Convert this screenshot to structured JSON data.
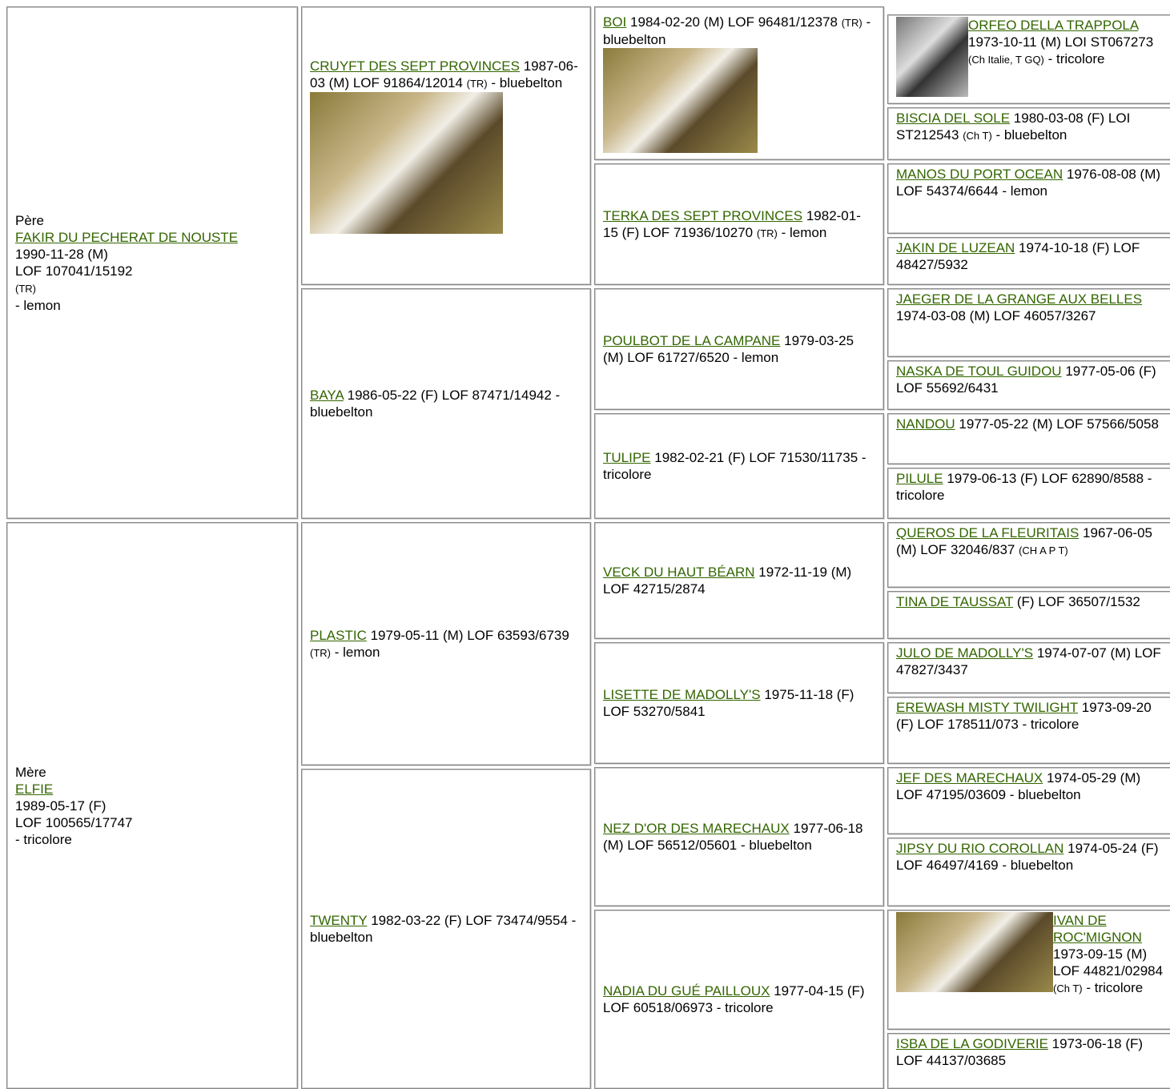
{
  "sire": {
    "role": "Père",
    "name": "FAKIR DU PECHERAT DE NOUSTE",
    "lines": [
      "1990-11-28 (M)",
      "LOF 107041/15192"
    ],
    "note": "(TR)",
    "color": "- lemon"
  },
  "dam": {
    "role": "Mère",
    "name": "ELFIE",
    "lines": [
      "1989-05-17 (F)",
      "LOF 100565/17747"
    ],
    "color": "- tricolore"
  },
  "grandparents": [
    {
      "name": "CRUYFT DES SEPT PROVINCES",
      "info": "1987-06-03 (M) LOF 91864/12014",
      "note": "(TR)",
      "color": "- bluebelton"
    },
    {
      "name": "BAYA",
      "info": "1986-05-22 (F) LOF 87471/14942 - bluebelton"
    },
    {
      "name": "PLASTIC",
      "info": "1979-05-11 (M) LOF 63593/6739",
      "note": "(TR)",
      "color": "- lemon"
    },
    {
      "name": "TWENTY",
      "info": "1982-03-22 (F) LOF 73474/9554 - bluebelton"
    }
  ],
  "great_grandparents": [
    {
      "name": "BOI",
      "info": "1984-02-20 (M) LOF 96481/12378",
      "note": "(TR)",
      "color": "- bluebelton"
    },
    {
      "name": "TERKA DES SEPT PROVINCES",
      "info": "1982-01-15 (F) LOF 71936/10270",
      "note": "(TR)",
      "color": "- lemon"
    },
    {
      "name": "POULBOT DE LA CAMPANE",
      "info": "1979-03-25 (M) LOF 61727/6520 - lemon"
    },
    {
      "name": "TULIPE",
      "info": "1982-02-21 (F) LOF 71530/11735 - tricolore"
    },
    {
      "name": "VECK DU HAUT BÉARN",
      "info": "1972-11-19 (M) LOF 42715/2874"
    },
    {
      "name": "LISETTE DE MADOLLY'S",
      "info": "1975-11-18 (F) LOF 53270/5841"
    },
    {
      "name": "NEZ D'OR DES MARECHAUX",
      "info": "1977-06-18 (M) LOF 56512/05601 - bluebelton"
    },
    {
      "name": "NADIA DU GUÉ PAILLOUX",
      "info": "1977-04-15 (F) LOF 60518/06973 - tricolore"
    }
  ],
  "gg_grandparents": [
    {
      "name": "ORFEO DELLA TRAPPOLA",
      "info": "1973-10-11 (M) LOI ST067273",
      "note": "(Ch Italie, T GQ)",
      "color": "- tricolore"
    },
    {
      "name": "BISCIA DEL SOLE",
      "info": "1980-03-08 (F) LOI ST212543",
      "note": "(Ch T)",
      "color": "- bluebelton"
    },
    {
      "name": "MANOS DU PORT OCEAN",
      "info": "1976-08-08 (M) LOF 54374/6644 - lemon"
    },
    {
      "name": "JAKIN DE LUZEAN",
      "info": "1974-10-18 (F) LOF 48427/5932"
    },
    {
      "name": "JAEGER DE LA GRANGE AUX BELLES",
      "info": "1974-03-08 (M) LOF 46057/3267"
    },
    {
      "name": "NASKA DE TOUL GUIDOU",
      "info": "1977-05-06 (F) LOF 55692/6431"
    },
    {
      "name": "NANDOU",
      "info": "1977-05-22 (M) LOF 57566/5058"
    },
    {
      "name": "PILULE",
      "info": "1979-06-13 (F) LOF 62890/8588 - tricolore"
    },
    {
      "name": "QUEROS DE LA FLEURITAIS",
      "info": "1967-06-05 (M) LOF 32046/837",
      "note": "(CH A P T)"
    },
    {
      "name": "TINA DE TAUSSAT",
      "info": "(F) LOF 36507/1532"
    },
    {
      "name": "JULO DE MADOLLY'S",
      "info": "1974-07-07 (M) LOF 47827/3437"
    },
    {
      "name": "EREWASH MISTY TWILIGHT",
      "info": "1973-09-20 (F) LOF 178511/073 - tricolore"
    },
    {
      "name": "JEF DES MARECHAUX",
      "info": "1974-05-29 (M) LOF 47195/03609 - bluebelton"
    },
    {
      "name": "JIPSY DU RIO COROLLAN",
      "info": "1974-05-24 (F) LOF 46497/4169 - bluebelton"
    },
    {
      "name": "IVAN DE ROC'MIGNON",
      "info": "1973-09-15 (M) LOF 44821/02984",
      "note": "(Ch T)",
      "color": "- tricolore"
    },
    {
      "name": "ISBA DE LA GODIVERIE",
      "info": "1973-06-18 (F) LOF 44137/03685"
    }
  ]
}
